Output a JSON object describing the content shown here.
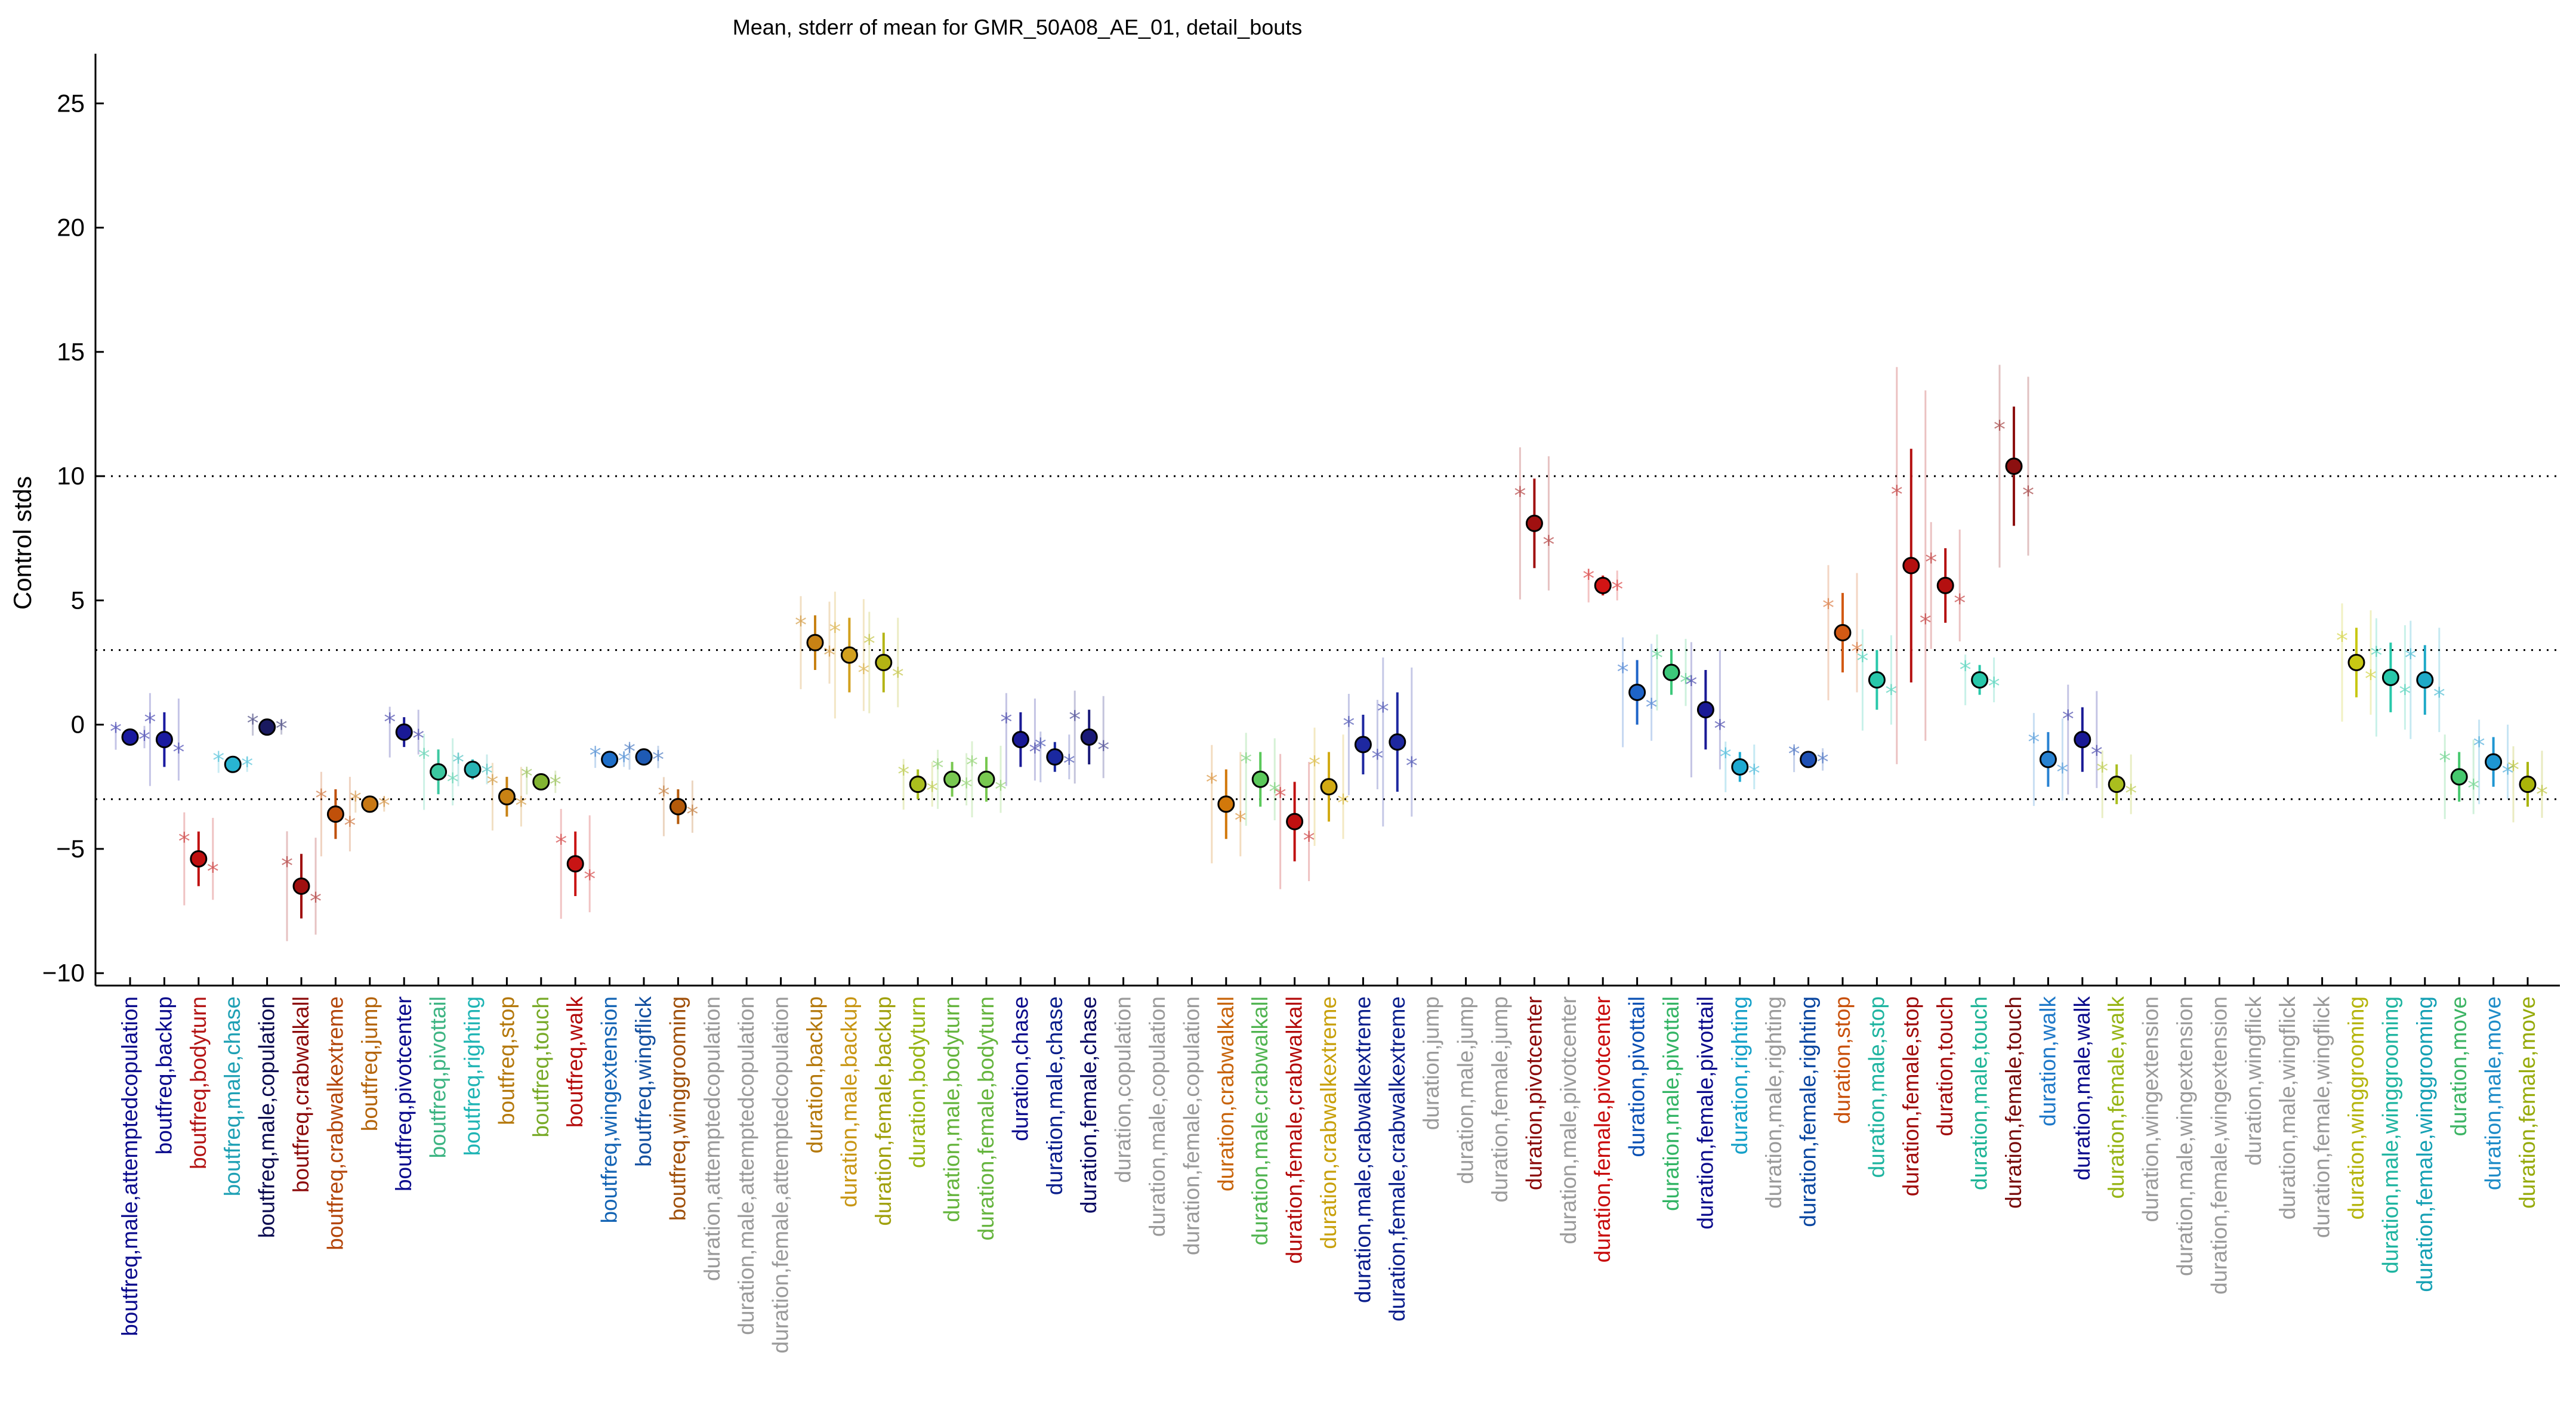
{
  "chart_data": {
    "type": "scatter",
    "title": "Mean, stderr of mean for GMR_50A08_AE_01, detail_bouts",
    "ylabel": "Control stds",
    "xlabel": "",
    "ylim": [
      -10.5,
      27
    ],
    "yticks": [
      -10,
      -5,
      0,
      5,
      10,
      15,
      20,
      25
    ],
    "reference_lines": [
      -3,
      3,
      10
    ],
    "grid": false,
    "categories": [
      "boutfreq,male,attemptedcopulation",
      "boutfreq,backup",
      "boutfreq,bodyturn",
      "boutfreq,male,chase",
      "boutfreq,male,copulation",
      "boutfreq,crabwalkall",
      "boutfreq,crabwalkextreme",
      "boutfreq,jump",
      "boutfreq,pivotcenter",
      "boutfreq,pivottail",
      "boutfreq,righting",
      "boutfreq,stop",
      "boutfreq,touch",
      "boutfreq,walk",
      "boutfreq,wingextension",
      "boutfreq,wingflick",
      "boutfreq,winggrooming",
      "duration,attemptedcopulation",
      "duration,male,attemptedcopulation",
      "duration,female,attemptedcopulation",
      "duration,backup",
      "duration,male,backup",
      "duration,female,backup",
      "duration,bodyturn",
      "duration,male,bodyturn",
      "duration,female,bodyturn",
      "duration,chase",
      "duration,male,chase",
      "duration,female,chase",
      "duration,copulation",
      "duration,male,copulation",
      "duration,female,copulation",
      "duration,crabwalkall",
      "duration,male,crabwalkall",
      "duration,female,crabwalkall",
      "duration,crabwalkextreme",
      "duration,male,crabwalkextreme",
      "duration,female,crabwalkextreme",
      "duration,jump",
      "duration,male,jump",
      "duration,female,jump",
      "duration,pivotcenter",
      "duration,male,pivotcenter",
      "duration,female,pivotcenter",
      "duration,pivottail",
      "duration,male,pivottail",
      "duration,female,pivottail",
      "duration,righting",
      "duration,male,righting",
      "duration,female,righting",
      "duration,stop",
      "duration,male,stop",
      "duration,female,stop",
      "duration,touch",
      "duration,male,touch",
      "duration,female,touch",
      "duration,walk",
      "duration,male,walk",
      "duration,female,walk",
      "duration,wingextension",
      "duration,male,wingextension",
      "duration,female,wingextension",
      "duration,wingflick",
      "duration,male,wingflick",
      "duration,female,wingflick",
      "duration,winggrooming",
      "duration,male,winggrooming",
      "duration,female,winggrooming",
      "duration,move",
      "duration,male,move",
      "duration,female,move"
    ],
    "label_colors": [
      "#0a0a8c",
      "#0a0a8c",
      "#b41414",
      "#1ea0b4",
      "#0a0a50",
      "#8c0a0a",
      "#b4460a",
      "#b4640a",
      "#0a0a8c",
      "#3cb482",
      "#1eb4b4",
      "#b4780a",
      "#78aa28",
      "#b40a0a",
      "#1464b4",
      "#1450a0",
      "#a0500a",
      "#9a9a9a",
      "#9a9a9a",
      "#9a9a9a",
      "#b4780a",
      "#c89614",
      "#a0a00a",
      "#96b414",
      "#64b43c",
      "#64b43c",
      "#0a0a8c",
      "#0a1e8c",
      "#0a0a64",
      "#9a9a9a",
      "#9a9a9a",
      "#9a9a9a",
      "#c8640a",
      "#50b450",
      "#b40a0a",
      "#c8a00a",
      "#0a1e8c",
      "#0a1e8c",
      "#9a9a9a",
      "#9a9a9a",
      "#9a9a9a",
      "#8c0a0a",
      "#9a9a9a",
      "#c80a0a",
      "#0a50b4",
      "#32b464",
      "#0a0a8c",
      "#14a0c8",
      "#9a9a9a",
      "#0a46a0",
      "#c8500a",
      "#1eb4a0",
      "#a00a0a",
      "#a00a0a",
      "#1eb496",
      "#780a0a",
      "#1e78c8",
      "#0a0a8c",
      "#96b414",
      "#9a9a9a",
      "#9a9a9a",
      "#9a9a9a",
      "#9a9a9a",
      "#9a9a9a",
      "#9a9a9a",
      "#b4b40a",
      "#1eb4a0",
      "#14a0b4",
      "#3cb464",
      "#1e8cc8",
      "#96aa0a"
    ],
    "series": [
      {
        "name": "mean",
        "values": [
          -0.5,
          -0.6,
          -5.4,
          -1.6,
          -0.1,
          -6.5,
          -3.6,
          -3.2,
          -0.3,
          -1.9,
          -1.8,
          -2.9,
          -2.3,
          -5.6,
          -1.4,
          -1.3,
          -3.3,
          null,
          null,
          null,
          3.3,
          2.8,
          2.5,
          -2.4,
          -2.2,
          -2.2,
          -0.6,
          -1.3,
          -0.5,
          null,
          null,
          null,
          -3.2,
          -2.2,
          -3.9,
          -2.5,
          -0.8,
          -0.7,
          null,
          null,
          null,
          8.1,
          null,
          5.6,
          1.3,
          2.1,
          0.6,
          -1.7,
          null,
          -1.4,
          3.7,
          1.8,
          6.4,
          5.6,
          1.8,
          10.4,
          -1.4,
          -0.6,
          -2.4,
          null,
          null,
          null,
          null,
          null,
          null,
          2.5,
          1.9,
          1.8,
          -2.1,
          -1.5,
          -2.4
        ]
      },
      {
        "name": "stderr",
        "values": [
          0.3,
          1.1,
          1.1,
          0.2,
          0.2,
          1.3,
          1.0,
          0.2,
          0.6,
          0.9,
          0.4,
          0.8,
          0.3,
          1.3,
          0.2,
          0.3,
          0.7,
          null,
          null,
          null,
          1.1,
          1.5,
          1.2,
          0.6,
          0.7,
          0.9,
          1.1,
          0.6,
          1.1,
          null,
          null,
          null,
          1.4,
          1.1,
          1.6,
          1.4,
          1.2,
          2.0,
          null,
          null,
          null,
          1.8,
          null,
          0.4,
          1.3,
          0.9,
          1.6,
          0.6,
          null,
          0.3,
          1.6,
          1.2,
          4.7,
          1.5,
          0.6,
          2.4,
          1.1,
          1.3,
          0.8,
          null,
          null,
          null,
          null,
          null,
          null,
          1.4,
          1.4,
          1.4,
          1.0,
          1.0,
          0.9
        ]
      },
      {
        "name": "marker_color",
        "values": [
          "#1a1aa0",
          "#1a1aa0",
          "#c01010",
          "#28b4d2",
          "#1a1a60",
          "#a01010",
          "#c0500a",
          "#c87814",
          "#1a1a96",
          "#3cc8a0",
          "#28b4b4",
          "#c88214",
          "#82b432",
          "#c81414",
          "#1e6ec8",
          "#1e5ab4",
          "#b45a0a",
          null,
          null,
          null,
          "#c88214",
          "#d2a01e",
          "#b4b414",
          "#aabe1e",
          "#78c850",
          "#78c850",
          "#1a1a96",
          "#1a28a0",
          "#1a1a78",
          null,
          null,
          null,
          "#d2780a",
          "#5ac85a",
          "#c01010",
          "#d2aa14",
          "#1e28a0",
          "#1e28a0",
          null,
          null,
          null,
          "#a01010",
          null,
          "#d21414",
          "#1e64c8",
          "#3cc87a",
          "#1a1a96",
          "#1eaad2",
          null,
          "#1e50b4",
          "#d25a14",
          "#28c8aa",
          "#b41010",
          "#b41010",
          "#28c8aa",
          "#8c1010",
          "#2882d2",
          "#1a1a96",
          "#aabe1e",
          null,
          null,
          null,
          null,
          null,
          null,
          "#c8c814",
          "#28c8aa",
          "#1eaac8",
          "#46c86e",
          "#1e96d2",
          "#aab40a"
        ]
      }
    ]
  }
}
